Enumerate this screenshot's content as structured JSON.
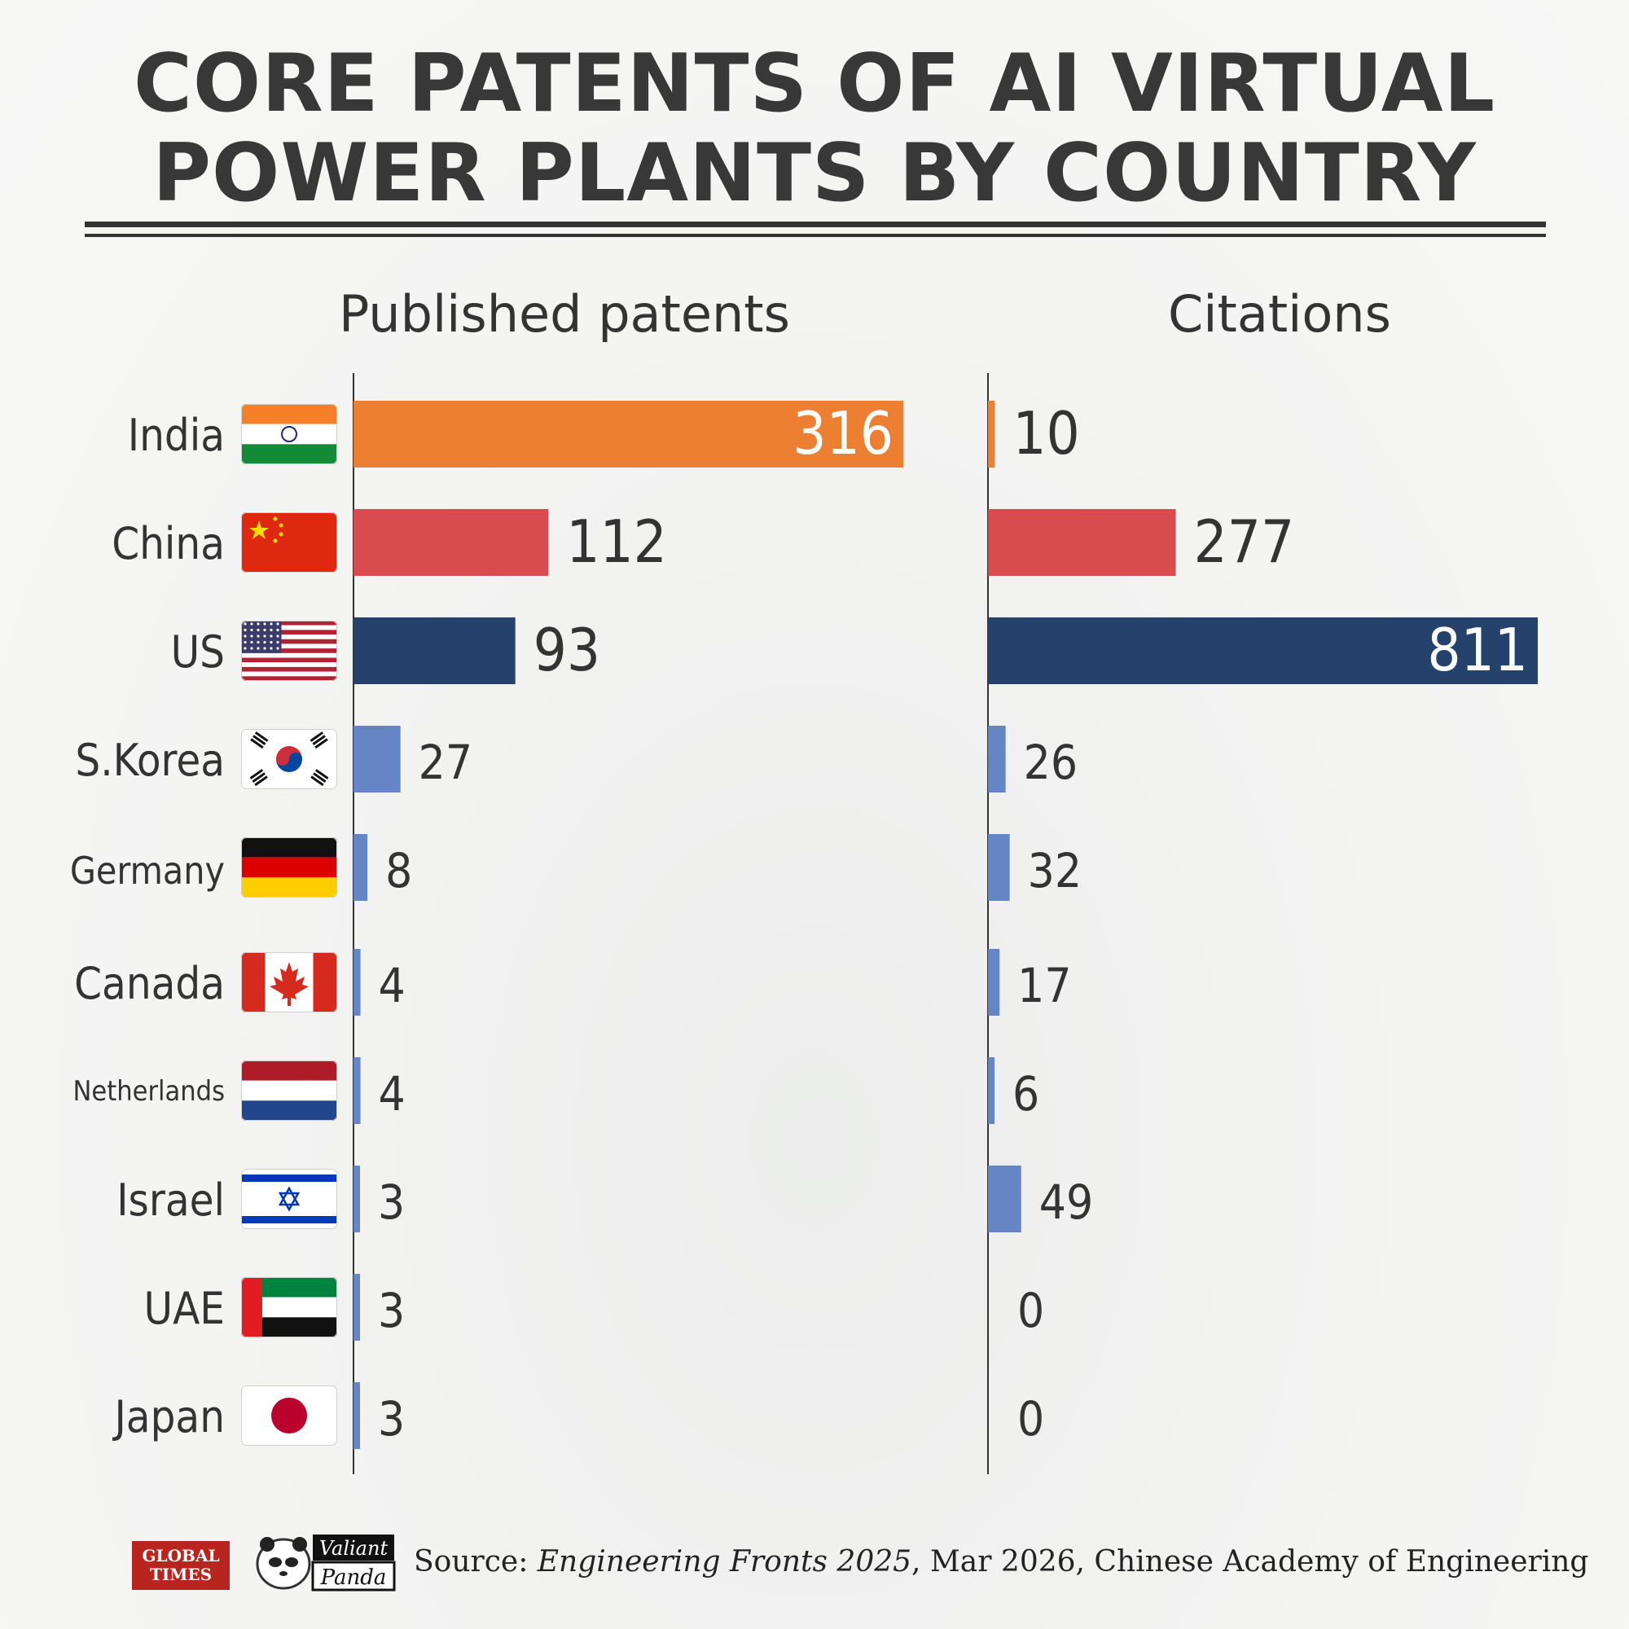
{
  "title_line1": "CORE PATENTS OF AI VIRTUAL",
  "title_line2": "POWER PLANTS BY COUNTRY",
  "countries": [
    "India",
    "China",
    "US",
    "S.Korea",
    "Germany",
    "Canada",
    "Netherlands",
    "Israel",
    "UAE",
    "Japan"
  ],
  "flags": [
    "india-flag-icon",
    "china-flag-icon",
    "us-flag-icon",
    "south-korea-flag-icon",
    "germany-flag-icon",
    "canada-flag-icon",
    "netherlands-flag-icon",
    "israel-flag-icon",
    "uae-flag-icon",
    "japan-flag-icon"
  ],
  "colors": {
    "India": "#ed7f33",
    "China": "#d84b4e",
    "US": "#24426b",
    "others": "#6585c4",
    "axis": "#333333",
    "label": "#333333"
  },
  "chart_data": [
    {
      "type": "bar",
      "orientation": "horizontal",
      "title": "Published patents",
      "categories": [
        "India",
        "China",
        "US",
        "S.Korea",
        "Germany",
        "Canada",
        "Netherlands",
        "Israel",
        "UAE",
        "Japan"
      ],
      "values": [
        316,
        112,
        93,
        27,
        8,
        4,
        4,
        3,
        3,
        3
      ]
    },
    {
      "type": "bar",
      "orientation": "horizontal",
      "title": "Citations",
      "categories": [
        "India",
        "China",
        "US",
        "S.Korea",
        "Germany",
        "Canada",
        "Netherlands",
        "Israel",
        "UAE",
        "Japan"
      ],
      "values": [
        10,
        277,
        811,
        26,
        32,
        17,
        6,
        49,
        0,
        0
      ]
    }
  ],
  "source": {
    "prefix": "Source: ",
    "publication": "Engineering Fronts 2025",
    "suffix": ", Mar 2026, Chinese Academy of Engineering"
  }
}
